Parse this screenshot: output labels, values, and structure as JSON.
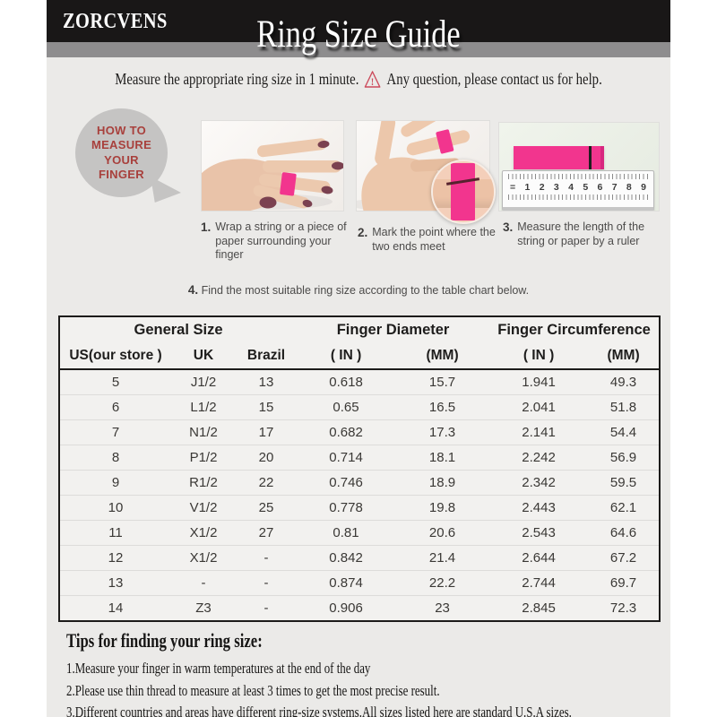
{
  "header": {
    "brand": "ZORCVENS",
    "title": "Ring Size Guide"
  },
  "intro": {
    "text_before_icon": "Measure the appropriate ring size in 1 minute.",
    "icon": "warning-triangle-icon",
    "text_after_icon": "Any question, please contact us for help."
  },
  "how_to_bubble": {
    "lines": [
      "HOW TO",
      "MEASURE",
      "YOUR",
      "FINGER"
    ]
  },
  "steps": [
    {
      "num": "1.",
      "text": "Wrap a string or a piece of paper surrounding your finger",
      "image": "hand-back-with-pink-string"
    },
    {
      "num": "2.",
      "text": "Mark the point where the two ends meet",
      "image": "palm-with-pink-string-and-zoom-inset"
    },
    {
      "num": "3.",
      "text": "Measure the length of the string or paper by a ruler",
      "image": "pink-strip-on-ruler"
    }
  ],
  "step4": {
    "num": "4.",
    "text": "Find the most suitable ring size according to the table chart below."
  },
  "ruler": {
    "prefix": "=",
    "numbers": [
      "1",
      "2",
      "3",
      "4",
      "5",
      "6",
      "7",
      "8",
      "9"
    ]
  },
  "size_table": {
    "group_headers": [
      {
        "label": "General Size",
        "colspan": 3
      },
      {
        "label": "Finger Diameter",
        "colspan": 2
      },
      {
        "label": "Finger Circumference",
        "colspan": 2
      }
    ],
    "column_headers": [
      "US(our store )",
      "UK",
      "Brazil",
      "( IN )",
      "(MM)",
      "( IN )",
      "(MM)"
    ],
    "rows": [
      [
        "5",
        "J1/2",
        "13",
        "0.618",
        "15.7",
        "1.941",
        "49.3"
      ],
      [
        "6",
        "L1/2",
        "15",
        "0.65",
        "16.5",
        "2.041",
        "51.8"
      ],
      [
        "7",
        "N1/2",
        "17",
        "0.682",
        "17.3",
        "2.141",
        "54.4"
      ],
      [
        "8",
        "P1/2",
        "20",
        "0.714",
        "18.1",
        "2.242",
        "56.9"
      ],
      [
        "9",
        "R1/2",
        "22",
        "0.746",
        "18.9",
        "2.342",
        "59.5"
      ],
      [
        "10",
        "V1/2",
        "25",
        "0.778",
        "19.8",
        "2.443",
        "62.1"
      ],
      [
        "11",
        "X1/2",
        "27",
        "0.81",
        "20.6",
        "2.543",
        "64.6"
      ],
      [
        "12",
        "X1/2",
        "-",
        "0.842",
        "21.4",
        "2.644",
        "67.2"
      ],
      [
        "13",
        "-",
        "-",
        "0.874",
        "22.2",
        "2.744",
        "69.7"
      ],
      [
        "14",
        "Z3",
        "-",
        "0.906",
        "23",
        "2.845",
        "72.3"
      ]
    ]
  },
  "tips": {
    "heading": "Tips for finding your ring size:",
    "items": [
      "1.Measure your finger in warm temperatures at the end of the day",
      "2.Please use thin thread to measure at least 3 times to get the most precise result.",
      "3.Different countries and areas have different ring-size systems.All sizes listed here are standard U.S.A sizes."
    ]
  },
  "colors": {
    "accent-pink": "#f2358e",
    "bubble-red": "#a8403c",
    "warning-red": "#cc4b5c",
    "header-black": "#191717",
    "bar-gray": "#8e8d8e",
    "body-gray": "#ebeae8"
  }
}
